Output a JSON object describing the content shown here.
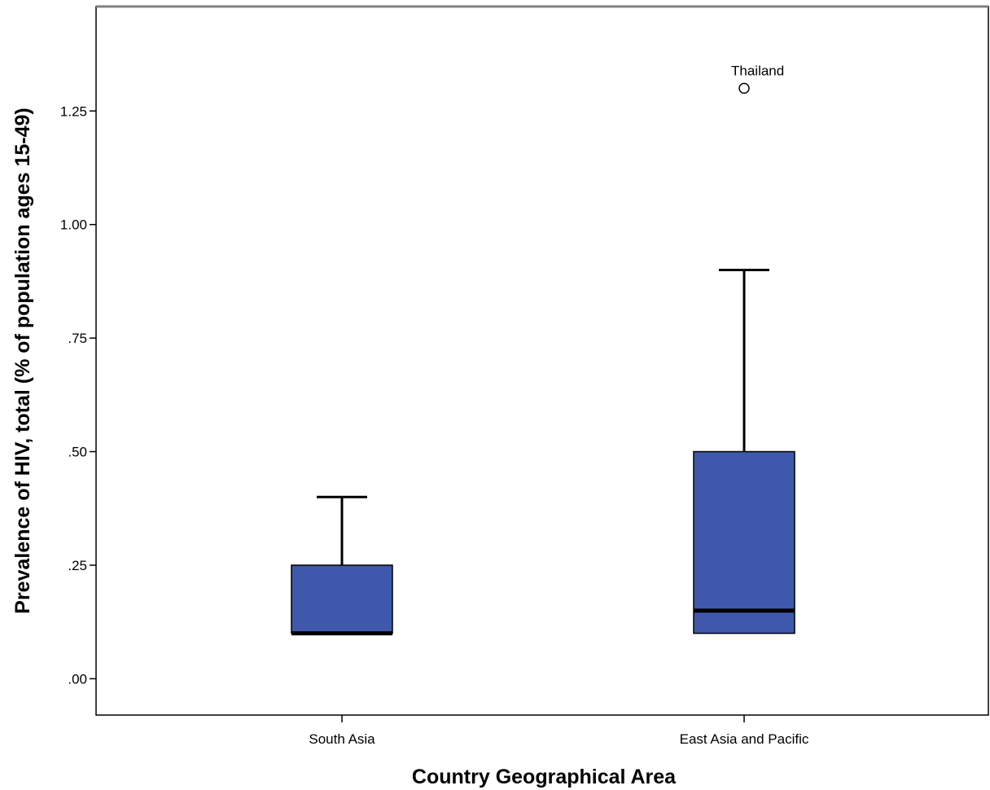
{
  "chart_data": {
    "type": "boxplot",
    "xlabel": "Country Geographical Area",
    "ylabel": "Prevalence of HIV, total (% of population ages 15-49)",
    "ylim": [
      -0.08,
      1.48
    ],
    "yticks": [
      0,
      0.25,
      0.5,
      0.75,
      1.0,
      1.25
    ],
    "ytick_labels": [
      ".00",
      ".25",
      ".50",
      ".75",
      "1.00",
      "1.25"
    ],
    "grid": false,
    "box_color": "#3f58ab",
    "categories": [
      "South Asia",
      "East Asia and Pacific"
    ],
    "boxes": [
      {
        "category": "South Asia",
        "whisker_low": 0.1,
        "q1": 0.1,
        "median": 0.1,
        "q3": 0.25,
        "whisker_high": 0.4,
        "outliers": []
      },
      {
        "category": "East Asia and Pacific",
        "whisker_low": 0.1,
        "q1": 0.1,
        "median": 0.15,
        "q3": 0.5,
        "whisker_high": 0.9,
        "outliers": [
          {
            "value": 1.3,
            "label": "Thailand"
          }
        ]
      }
    ]
  }
}
